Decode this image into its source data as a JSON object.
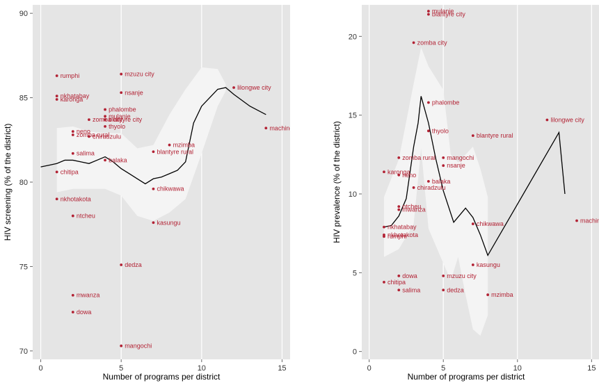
{
  "chart_data": [
    {
      "type": "scatter",
      "xlabel": "Number of programs per district",
      "ylabel": "HIV screening (% of the district)",
      "xlim": [
        -0.5,
        15.5
      ],
      "ylim": [
        69.5,
        90.5
      ],
      "xticks": [
        0,
        5,
        10,
        15
      ],
      "yticks": [
        70,
        75,
        80,
        85,
        90
      ],
      "grid": true,
      "colors": {
        "background": "#e5e5e5",
        "gridline": "#ffffff",
        "band": "#f4f4f4",
        "point": "#b22234",
        "line": "#000000"
      },
      "points": [
        {
          "label": "rumphi",
          "x": 1,
          "y": 86.3
        },
        {
          "label": "nkhatabay",
          "x": 1,
          "y": 85.1
        },
        {
          "label": "karonga",
          "x": 1,
          "y": 84.9
        },
        {
          "label": "chitipa",
          "x": 1,
          "y": 80.6
        },
        {
          "label": "nkhotakota",
          "x": 1,
          "y": 79.0
        },
        {
          "label": "neno",
          "x": 2,
          "y": 83.0
        },
        {
          "label": "zomba rural",
          "x": 2,
          "y": 82.8
        },
        {
          "label": "salima",
          "x": 2,
          "y": 81.7
        },
        {
          "label": "ntcheu",
          "x": 2,
          "y": 78.0
        },
        {
          "label": "mwanza",
          "x": 2,
          "y": 73.3
        },
        {
          "label": "dowa",
          "x": 2,
          "y": 72.3
        },
        {
          "label": "zomba city",
          "x": 3,
          "y": 83.7
        },
        {
          "label": "chiradzulu",
          "x": 3,
          "y": 82.7
        },
        {
          "label": "phalombe",
          "x": 4,
          "y": 84.3
        },
        {
          "label": "mulanje",
          "x": 4,
          "y": 83.9
        },
        {
          "label": "blantyre city",
          "x": 4,
          "y": 83.7
        },
        {
          "label": "thyolo",
          "x": 4,
          "y": 83.3
        },
        {
          "label": "balaka",
          "x": 4,
          "y": 81.3
        },
        {
          "label": "mzuzu city",
          "x": 5,
          "y": 86.4
        },
        {
          "label": "nsanje",
          "x": 5,
          "y": 85.3
        },
        {
          "label": "dedza",
          "x": 5,
          "y": 75.1
        },
        {
          "label": "mangochi",
          "x": 5,
          "y": 70.3
        },
        {
          "label": "blantyre rural",
          "x": 7,
          "y": 81.8
        },
        {
          "label": "chikwawa",
          "x": 7,
          "y": 79.6
        },
        {
          "label": "kasungu",
          "x": 7,
          "y": 77.6
        },
        {
          "label": "mzimba",
          "x": 8,
          "y": 82.2
        },
        {
          "label": "lilongwe city",
          "x": 12,
          "y": 85.6
        },
        {
          "label": "machinga",
          "x": 14,
          "y": 83.2
        }
      ],
      "smooth_line": [
        [
          0,
          80.9
        ],
        [
          0.5,
          81.0
        ],
        [
          1,
          81.1
        ],
        [
          1.5,
          81.3
        ],
        [
          2,
          81.3
        ],
        [
          2.5,
          81.2
        ],
        [
          3,
          81.1
        ],
        [
          3.5,
          81.3
        ],
        [
          4,
          81.5
        ],
        [
          4.5,
          81.2
        ],
        [
          5,
          80.8
        ],
        [
          5.5,
          80.5
        ],
        [
          6,
          80.2
        ],
        [
          6.5,
          79.9
        ],
        [
          7,
          80.2
        ],
        [
          7.5,
          80.3
        ],
        [
          8,
          80.5
        ],
        [
          8.5,
          80.7
        ],
        [
          9,
          81.2
        ],
        [
          9.5,
          83.5
        ],
        [
          10,
          84.5
        ],
        [
          10.5,
          85.0
        ],
        [
          11,
          85.5
        ],
        [
          11.5,
          85.6
        ],
        [
          12,
          85.2
        ],
        [
          13,
          84.5
        ],
        [
          14,
          84.0
        ]
      ],
      "band_upper": [
        [
          1,
          83.2
        ],
        [
          2,
          83.3
        ],
        [
          3,
          83.0
        ],
        [
          4,
          82.9
        ],
        [
          5,
          82.9
        ],
        [
          6,
          82.0
        ],
        [
          7,
          82.2
        ],
        [
          8,
          84.0
        ],
        [
          9,
          85.5
        ],
        [
          10,
          86.8
        ],
        [
          11,
          86.7
        ],
        [
          11.5,
          85.8
        ]
      ],
      "band_lower": [
        [
          11.5,
          85.4
        ],
        [
          11,
          84.5
        ],
        [
          10,
          81.7
        ],
        [
          9,
          79.0
        ],
        [
          8,
          78.2
        ],
        [
          7,
          77.7
        ],
        [
          6,
          78.0
        ],
        [
          5,
          79.2
        ],
        [
          4,
          79.6
        ],
        [
          3,
          79.6
        ],
        [
          2,
          79.6
        ],
        [
          1,
          79.4
        ]
      ]
    },
    {
      "type": "scatter",
      "xlabel": "Number of programs per district",
      "ylabel": "HIV prevalence (% of the district)",
      "xlim": [
        -0.5,
        15.5
      ],
      "ylim": [
        -0.5,
        22
      ],
      "xticks": [
        0,
        5,
        10,
        15
      ],
      "yticks": [
        0,
        5,
        10,
        15,
        20
      ],
      "grid": true,
      "colors": {
        "background": "#e5e5e5",
        "gridline": "#ffffff",
        "band": "#f4f4f4",
        "point": "#b22234",
        "line": "#000000"
      },
      "points": [
        {
          "label": "mulanje",
          "x": 4,
          "y": 21.6
        },
        {
          "label": "blantyre city",
          "x": 4,
          "y": 21.4
        },
        {
          "label": "zomba city",
          "x": 3,
          "y": 19.6
        },
        {
          "label": "phalombe",
          "x": 4,
          "y": 15.8
        },
        {
          "label": "thyolo",
          "x": 4,
          "y": 14.0
        },
        {
          "label": "blantyre rural",
          "x": 7,
          "y": 13.7
        },
        {
          "label": "lilongwe city",
          "x": 12,
          "y": 14.7
        },
        {
          "label": "zomba rural",
          "x": 2,
          "y": 12.3
        },
        {
          "label": "mangochi",
          "x": 5,
          "y": 12.3
        },
        {
          "label": "nsanje",
          "x": 5,
          "y": 11.8
        },
        {
          "label": "karonga",
          "x": 1,
          "y": 11.4
        },
        {
          "label": "neno",
          "x": 2,
          "y": 11.2
        },
        {
          "label": "balaka",
          "x": 4,
          "y": 10.8
        },
        {
          "label": "chiradzulu",
          "x": 3,
          "y": 10.4
        },
        {
          "label": "ntcheu",
          "x": 2,
          "y": 9.2
        },
        {
          "label": "mwanza",
          "x": 2,
          "y": 9.0
        },
        {
          "label": "machinga",
          "x": 14,
          "y": 8.3
        },
        {
          "label": "chikwawa",
          "x": 7,
          "y": 8.1
        },
        {
          "label": "nkhatabay",
          "x": 1,
          "y": 7.9
        },
        {
          "label": "nkhotakota",
          "x": 1,
          "y": 7.4
        },
        {
          "label": "rumphi",
          "x": 1,
          "y": 7.3
        },
        {
          "label": "kasungu",
          "x": 7,
          "y": 5.5
        },
        {
          "label": "dowa",
          "x": 2,
          "y": 4.8
        },
        {
          "label": "mzuzu city",
          "x": 5,
          "y": 4.8
        },
        {
          "label": "chitipa",
          "x": 1,
          "y": 4.4
        },
        {
          "label": "salima",
          "x": 2,
          "y": 3.9
        },
        {
          "label": "dedza",
          "x": 5,
          "y": 3.9
        },
        {
          "label": "mzimba",
          "x": 8,
          "y": 3.6
        }
      ],
      "smooth_line": [
        [
          1,
          7.9
        ],
        [
          1.5,
          8.0
        ],
        [
          2,
          8.6
        ],
        [
          2.5,
          9.7
        ],
        [
          3,
          13.0
        ],
        [
          3.3,
          14.5
        ],
        [
          3.5,
          16.2
        ],
        [
          4,
          14.5
        ],
        [
          4.5,
          12.2
        ],
        [
          5,
          10.2
        ],
        [
          5.7,
          8.2
        ],
        [
          6.5,
          9.1
        ],
        [
          7,
          8.5
        ],
        [
          7.5,
          7.4
        ],
        [
          8,
          6.1
        ],
        [
          12.8,
          13.9
        ],
        [
          13.2,
          10.0
        ]
      ],
      "band_upper": [
        [
          1,
          9.8
        ],
        [
          2,
          12.2
        ],
        [
          3,
          17.0
        ],
        [
          3.5,
          19.3
        ],
        [
          4,
          18.1
        ],
        [
          5,
          16.6
        ],
        [
          5.5,
          12.5
        ],
        [
          6,
          12.0
        ],
        [
          7,
          13.0
        ],
        [
          7.5,
          11.6
        ],
        [
          8,
          9.8
        ]
      ],
      "band_lower": [
        [
          8,
          2.3
        ],
        [
          7.5,
          1.0
        ],
        [
          7,
          1.4
        ],
        [
          6.5,
          3.6
        ],
        [
          6,
          6.0
        ],
        [
          5.5,
          4.5
        ],
        [
          5,
          5.6
        ],
        [
          4,
          7.8
        ],
        [
          3.5,
          12.9
        ],
        [
          3,
          8.1
        ],
        [
          2,
          6.5
        ],
        [
          1,
          6.0
        ]
      ]
    }
  ]
}
